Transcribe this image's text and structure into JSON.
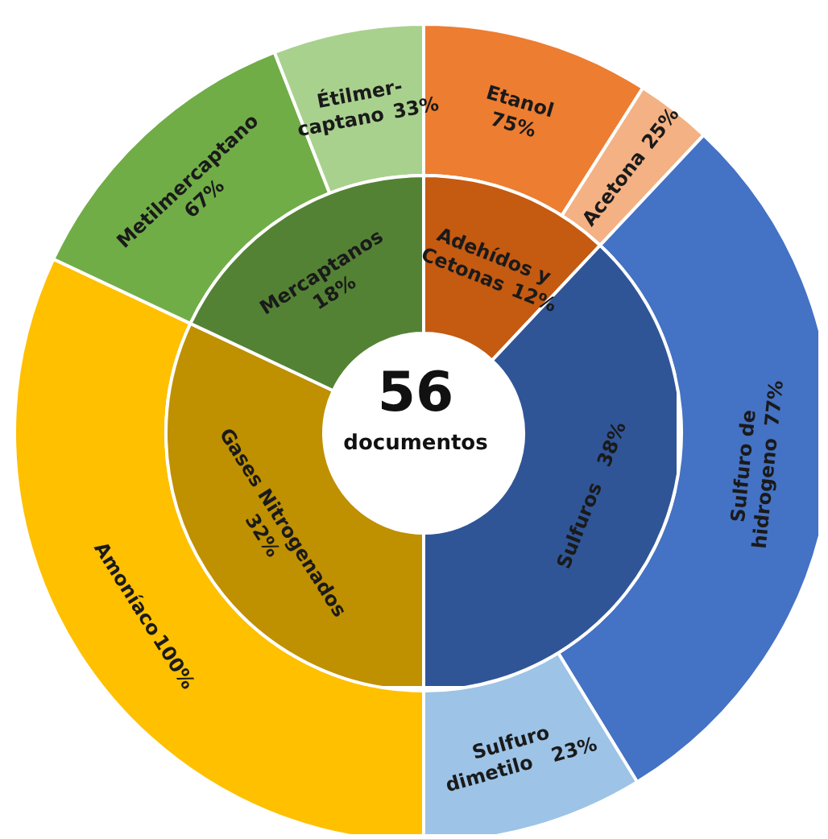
{
  "chart_data": [
    {
      "type": "other",
      "categories": [
        "Adehídos y\nCetonas",
        "Sulfuros",
        "Gases Nitrogenados",
        "Mercaptanos"
      ],
      "values": [
        12,
        38,
        32,
        18
      ],
      "colors": [
        "#c55a11",
        "#2f5597",
        "#bf9000",
        "#548235"
      ],
      "value_labels": [
        "12%",
        "38%",
        "32%",
        "18%"
      ],
      "annotations": [
        "56",
        "documentos"
      ]
    },
    {
      "type": "other",
      "categories": [
        "Etanol",
        "Acetona",
        "Sulfuro de\nhidrogeno",
        "Sulfuro\ndimetilo",
        "Amoníaco",
        "Metilmercaptano",
        "Étilmer-\ncaptano"
      ],
      "values": [
        75,
        25,
        77,
        23,
        100,
        67,
        33
      ],
      "colors": [
        "#ed7d31",
        "#f4b183",
        "#4472c4",
        "#9dc3e6",
        "#ffc000",
        "#70ad47",
        "#a9d18e"
      ],
      "value_labels": [
        "75%",
        "25%",
        "77%",
        "23%",
        "100%",
        "67%",
        "33%"
      ]
    }
  ]
}
